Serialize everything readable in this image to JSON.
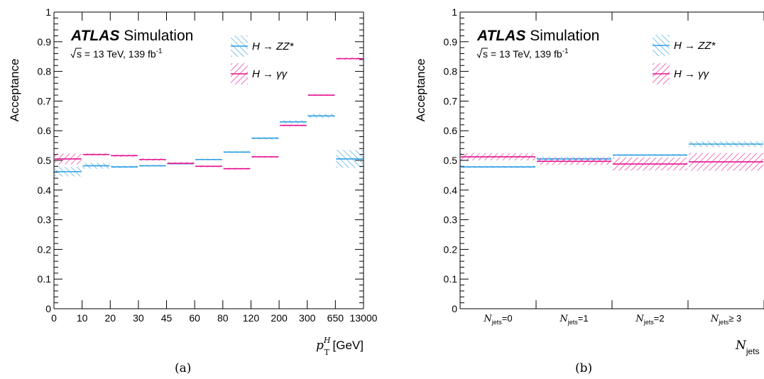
{
  "colors": {
    "hzz": "#2a9ee3",
    "hgg": "#e6128e",
    "axis": "#000000"
  },
  "chart_data": [
    {
      "type": "step",
      "panel_label": "(a)",
      "title_bold": "ATLAS",
      "title_rest": " Simulation",
      "subtitle_pre": "s = 13 TeV, 139 fb",
      "subtitle_sup": "-1",
      "ylabel": "Acceptance",
      "xlabel_var": "p",
      "xlabel_sup": "H",
      "xlabel_sub": "T",
      "xlabel_unit": " [GeV]",
      "ylim": [
        0,
        1
      ],
      "yticks": [
        "0",
        "0.1",
        "0.2",
        "0.3",
        "0.4",
        "0.5",
        "0.6",
        "0.7",
        "0.8",
        "0.9",
        "1"
      ],
      "xticks": [
        "0",
        "10",
        "20",
        "30",
        "45",
        "60",
        "80",
        "120",
        "200",
        "300",
        "650",
        "13000"
      ],
      "bins": 11,
      "legend": [
        {
          "key": "hzz",
          "label": "H → ZZ*"
        },
        {
          "key": "hgg",
          "label": "H → γγ"
        }
      ],
      "series": [
        {
          "key": "hzz",
          "values": [
            0.462,
            0.482,
            0.478,
            0.482,
            0.489,
            0.503,
            0.528,
            0.575,
            0.63,
            0.65,
            0.505
          ],
          "errors": [
            0.016,
            0.01,
            0.004,
            0.003,
            0.003,
            0.003,
            0.003,
            0.004,
            0.005,
            0.007,
            0.03
          ]
        },
        {
          "key": "hgg",
          "values": [
            0.505,
            0.52,
            0.516,
            0.503,
            0.49,
            0.48,
            0.472,
            0.512,
            0.618,
            0.72,
            0.843
          ],
          "errors": [
            0.018,
            0.004,
            0.004,
            0.004,
            0.004,
            0.003,
            0.003,
            0.003,
            0.003,
            0.003,
            0.004
          ]
        }
      ]
    },
    {
      "type": "step",
      "panel_label": "(b)",
      "title_bold": "ATLAS",
      "title_rest": " Simulation",
      "subtitle_pre": "s = 13 TeV, 139 fb",
      "subtitle_sup": "-1",
      "ylabel": "Acceptance",
      "xlabel_var": "N",
      "xlabel_sub": "jets",
      "ylim": [
        0,
        1
      ],
      "yticks": [
        "0",
        "0.1",
        "0.2",
        "0.3",
        "0.4",
        "0.5",
        "0.6",
        "0.7",
        "0.8",
        "0.9",
        "1"
      ],
      "categories": [
        {
          "pre": "N",
          "sub": "jets",
          "post": "=0"
        },
        {
          "pre": "N",
          "sub": "jets",
          "post": "=1"
        },
        {
          "pre": "N",
          "sub": "jets",
          "post": "=2"
        },
        {
          "pre": "N",
          "sub": "jets",
          "post": "≥ 3"
        }
      ],
      "bins": 4,
      "legend": [
        {
          "key": "hzz",
          "label": "H → ZZ*"
        },
        {
          "key": "hgg",
          "label": "H → γγ"
        }
      ],
      "series": [
        {
          "key": "hzz",
          "values": [
            0.478,
            0.505,
            0.518,
            0.555
          ],
          "errors": [
            0.004,
            0.008,
            0.003,
            0.01
          ]
        },
        {
          "key": "hgg",
          "values": [
            0.512,
            0.497,
            0.488,
            0.495
          ],
          "errors": [
            0.012,
            0.012,
            0.022,
            0.03
          ]
        }
      ]
    }
  ]
}
